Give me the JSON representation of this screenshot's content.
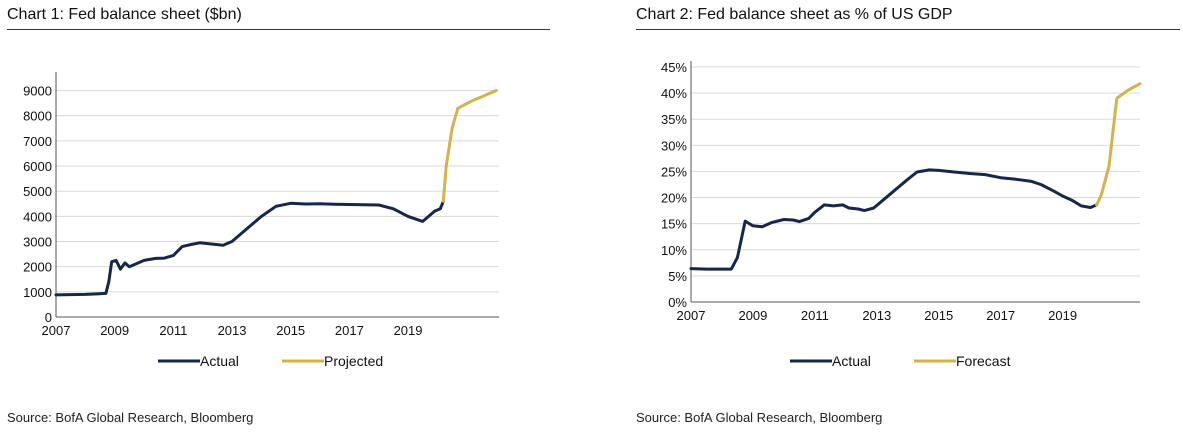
{
  "colors": {
    "actual": "#14284b",
    "projected": "#d4b24c",
    "rule": "#1f3a5f",
    "grid": "#d9d9d9",
    "axis": "#555555"
  },
  "chart_data": [
    {
      "type": "line",
      "title": "Chart 1: Fed balance sheet ($bn)",
      "source": "Source: BofA Global Research, Bloomberg",
      "xlim": [
        2007,
        2022.1
      ],
      "ylim": [
        0,
        9500
      ],
      "x_ticks": [
        2007,
        2009,
        2011,
        2013,
        2015,
        2017,
        2019
      ],
      "x_tick_labels": [
        "2007",
        "2009",
        "2011",
        "2013",
        "2015",
        "2017",
        "2019"
      ],
      "y_ticks": [
        0,
        1000,
        2000,
        3000,
        4000,
        5000,
        6000,
        7000,
        8000,
        9000
      ],
      "y_tick_labels": [
        "0",
        "1000",
        "2000",
        "3000",
        "4000",
        "5000",
        "6000",
        "7000",
        "8000",
        "9000"
      ],
      "grid": true,
      "legend": "bottom",
      "series": [
        {
          "name": "Actual",
          "color_key": "actual",
          "points": [
            [
              2007.0,
              880
            ],
            [
              2007.5,
              890
            ],
            [
              2008.0,
              900
            ],
            [
              2008.4,
              920
            ],
            [
              2008.7,
              940
            ],
            [
              2008.8,
              1400
            ],
            [
              2008.9,
              2200
            ],
            [
              2009.05,
              2250
            ],
            [
              2009.2,
              1900
            ],
            [
              2009.35,
              2150
            ],
            [
              2009.5,
              2000
            ],
            [
              2009.7,
              2100
            ],
            [
              2010.0,
              2250
            ],
            [
              2010.4,
              2330
            ],
            [
              2010.7,
              2340
            ],
            [
              2011.0,
              2450
            ],
            [
              2011.3,
              2800
            ],
            [
              2011.6,
              2880
            ],
            [
              2011.9,
              2950
            ],
            [
              2012.3,
              2900
            ],
            [
              2012.7,
              2850
            ],
            [
              2013.0,
              3000
            ],
            [
              2013.5,
              3500
            ],
            [
              2014.0,
              4000
            ],
            [
              2014.5,
              4400
            ],
            [
              2015.0,
              4520
            ],
            [
              2015.5,
              4490
            ],
            [
              2016.0,
              4500
            ],
            [
              2016.5,
              4480
            ],
            [
              2017.0,
              4470
            ],
            [
              2017.5,
              4460
            ],
            [
              2018.0,
              4450
            ],
            [
              2018.5,
              4300
            ],
            [
              2019.0,
              4000
            ],
            [
              2019.5,
              3800
            ],
            [
              2019.7,
              4000
            ],
            [
              2019.9,
              4200
            ],
            [
              2020.1,
              4300
            ],
            [
              2020.2,
              4600
            ]
          ]
        },
        {
          "name": "Projected",
          "color_key": "projected",
          "points": [
            [
              2020.2,
              4600
            ],
            [
              2020.3,
              6000
            ],
            [
              2020.5,
              7500
            ],
            [
              2020.7,
              8300
            ],
            [
              2021.2,
              8600
            ],
            [
              2021.7,
              8850
            ],
            [
              2022.0,
              9000
            ]
          ]
        }
      ]
    },
    {
      "type": "line",
      "title": "Chart 2: Fed balance sheet as % of US GDP",
      "source": "Source: BofA Global Research, Bloomberg",
      "xlim": [
        2007,
        2021.5
      ],
      "ylim": [
        0,
        45
      ],
      "x_ticks": [
        2007,
        2009,
        2011,
        2013,
        2015,
        2017,
        2019
      ],
      "x_tick_labels": [
        "2007",
        "2009",
        "2011",
        "2013",
        "2015",
        "2017",
        "2019"
      ],
      "y_ticks": [
        0,
        5,
        10,
        15,
        20,
        25,
        30,
        35,
        40,
        45
      ],
      "y_tick_labels": [
        "0%",
        "5%",
        "10%",
        "15%",
        "20%",
        "25%",
        "30%",
        "35%",
        "40%",
        "45%"
      ],
      "grid": true,
      "legend": "bottom",
      "series": [
        {
          "name": "Actual",
          "color_key": "actual",
          "points": [
            [
              2007.0,
              6.4
            ],
            [
              2007.5,
              6.3
            ],
            [
              2008.0,
              6.3
            ],
            [
              2008.3,
              6.3
            ],
            [
              2008.5,
              8.5
            ],
            [
              2008.75,
              15.5
            ],
            [
              2009.0,
              14.6
            ],
            [
              2009.3,
              14.4
            ],
            [
              2009.6,
              15.2
            ],
            [
              2010.0,
              15.8
            ],
            [
              2010.3,
              15.7
            ],
            [
              2010.5,
              15.4
            ],
            [
              2010.8,
              16.0
            ],
            [
              2011.0,
              17.2
            ],
            [
              2011.3,
              18.6
            ],
            [
              2011.6,
              18.4
            ],
            [
              2011.9,
              18.6
            ],
            [
              2012.1,
              18.0
            ],
            [
              2012.4,
              17.8
            ],
            [
              2012.6,
              17.5
            ],
            [
              2012.9,
              18.0
            ],
            [
              2013.2,
              19.5
            ],
            [
              2013.6,
              21.5
            ],
            [
              2014.0,
              23.5
            ],
            [
              2014.3,
              24.9
            ],
            [
              2014.7,
              25.3
            ],
            [
              2015.0,
              25.2
            ],
            [
              2015.5,
              24.9
            ],
            [
              2016.0,
              24.6
            ],
            [
              2016.5,
              24.4
            ],
            [
              2017.0,
              23.8
            ],
            [
              2017.5,
              23.5
            ],
            [
              2018.0,
              23.1
            ],
            [
              2018.3,
              22.5
            ],
            [
              2018.7,
              21.3
            ],
            [
              2019.0,
              20.3
            ],
            [
              2019.3,
              19.5
            ],
            [
              2019.6,
              18.4
            ],
            [
              2019.9,
              18.1
            ],
            [
              2020.1,
              18.6
            ]
          ]
        },
        {
          "name": "Forecast",
          "color_key": "projected",
          "points": [
            [
              2020.1,
              18.6
            ],
            [
              2020.25,
              20.5
            ],
            [
              2020.5,
              26.0
            ],
            [
              2020.75,
              39.0
            ],
            [
              2021.1,
              40.5
            ],
            [
              2021.5,
              41.8
            ]
          ]
        }
      ]
    }
  ]
}
